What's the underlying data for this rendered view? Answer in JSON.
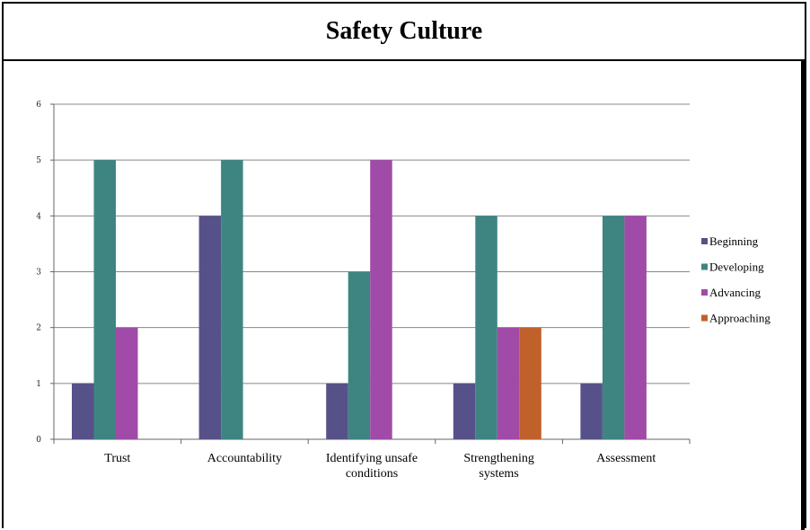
{
  "chart_data": {
    "type": "bar",
    "title": "Safety Culture",
    "categories": [
      [
        "Trust"
      ],
      [
        "Accountability"
      ],
      [
        "Identifying unsafe",
        "conditions"
      ],
      [
        "Strengthening",
        "systems"
      ],
      [
        "Assessment"
      ]
    ],
    "series": [
      {
        "name": "Beginning",
        "color": "#575189",
        "values": [
          1,
          4,
          1,
          1,
          1
        ]
      },
      {
        "name": "Developing",
        "color": "#3e8582",
        "values": [
          5,
          5,
          3,
          4,
          4
        ]
      },
      {
        "name": "Advancing",
        "color": "#a04ba8",
        "values": [
          2,
          null,
          5,
          2,
          4
        ]
      },
      {
        "name": "Approaching",
        "color": "#c0612b",
        "values": [
          null,
          null,
          null,
          2,
          null
        ]
      }
    ],
    "ylim": [
      0,
      6
    ],
    "yticks": [
      0,
      1,
      2,
      3,
      4,
      5,
      6
    ],
    "grid": true,
    "legend": "right"
  }
}
